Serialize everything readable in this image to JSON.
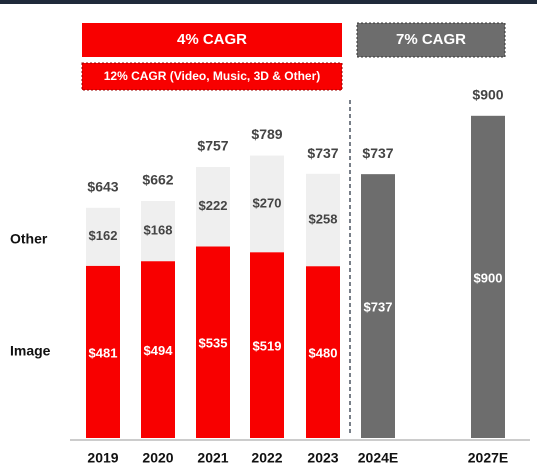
{
  "chart_data": {
    "type": "bar",
    "stacked": true,
    "categories": [
      "2019",
      "2020",
      "2021",
      "2022",
      "2023",
      "2024E",
      "2027E"
    ],
    "series": [
      {
        "name": "Image",
        "color": "#f80000",
        "values": [
          481,
          494,
          535,
          519,
          480,
          null,
          null
        ],
        "value_labels": [
          "$481",
          "$494",
          "$535",
          "$519",
          "$480",
          null,
          null
        ]
      },
      {
        "name": "Other",
        "color": "#efefef",
        "values": [
          162,
          168,
          222,
          270,
          258,
          null,
          null
        ],
        "value_labels": [
          "$162",
          "$168",
          "$222",
          "$270",
          "$258",
          null,
          null
        ]
      },
      {
        "color": "#6d6d6d",
        "values": [
          null,
          null,
          null,
          null,
          null,
          737,
          900
        ],
        "value_labels": [
          null,
          null,
          null,
          null,
          null,
          "$737",
          "$900"
        ]
      }
    ],
    "totals": [
      643,
      662,
      757,
      789,
      737,
      737,
      900
    ],
    "total_labels": [
      "$643",
      "$662",
      "$757",
      "$789",
      "$737",
      "$737",
      "$900"
    ],
    "annotations": [
      "4% CAGR",
      "12% CAGR (Video, Music, 3D & Other)",
      "7% CAGR"
    ]
  }
}
